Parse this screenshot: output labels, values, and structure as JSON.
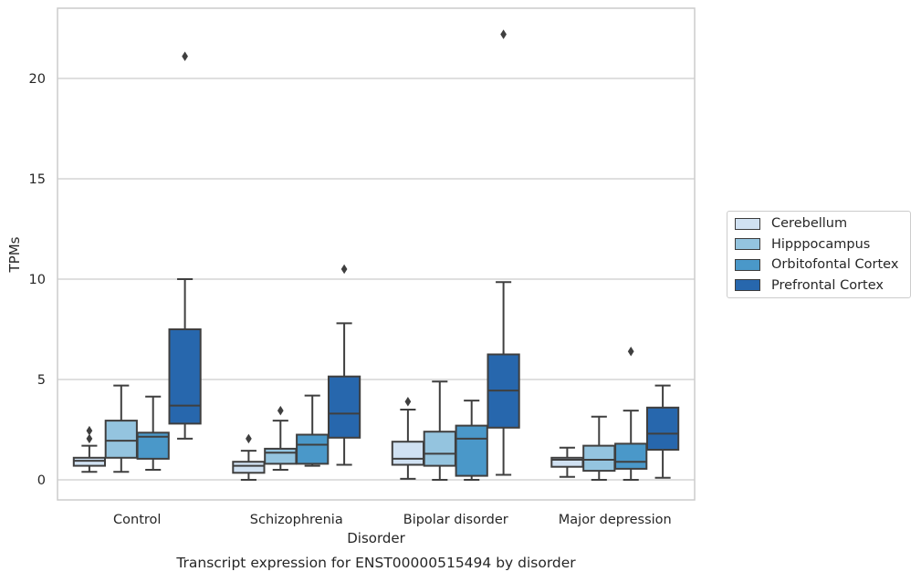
{
  "chart_data": {
    "type": "box",
    "title": "",
    "caption": "Transcript expression for ENST00000515494 by disorder",
    "xlabel": "Disorder",
    "ylabel": "TPMs",
    "ylim": [
      -1,
      23.5
    ],
    "yticks": [
      0,
      5,
      10,
      15,
      20
    ],
    "grid": "horizontal",
    "legend_position": "right",
    "categories": [
      "Control",
      "Schizophrenia",
      "Bipolar disorder",
      "Major depression"
    ],
    "series": [
      {
        "name": "Cerebellum",
        "color": "#d0e1f2",
        "boxes": [
          {
            "whislo": 0.4,
            "q1": 0.7,
            "med": 0.95,
            "q3": 1.1,
            "whishi": 1.7,
            "fliers": [
              2.05,
              2.45
            ]
          },
          {
            "whislo": 0.0,
            "q1": 0.35,
            "med": 0.7,
            "q3": 0.9,
            "whishi": 1.45,
            "fliers": [
              2.05
            ]
          },
          {
            "whislo": 0.05,
            "q1": 0.75,
            "med": 1.05,
            "q3": 1.9,
            "whishi": 3.5,
            "fliers": [
              3.9
            ]
          },
          {
            "whislo": 0.15,
            "q1": 0.65,
            "med": 1.0,
            "q3": 1.1,
            "whishi": 1.6,
            "fliers": []
          }
        ]
      },
      {
        "name": "Hipppocampus",
        "color": "#94c4df",
        "boxes": [
          {
            "whislo": 0.4,
            "q1": 1.1,
            "med": 1.95,
            "q3": 2.95,
            "whishi": 4.7,
            "fliers": []
          },
          {
            "whislo": 0.5,
            "q1": 0.8,
            "med": 1.35,
            "q3": 1.55,
            "whishi": 2.95,
            "fliers": [
              3.45
            ]
          },
          {
            "whislo": 0.0,
            "q1": 0.7,
            "med": 1.3,
            "q3": 2.4,
            "whishi": 4.9,
            "fliers": []
          },
          {
            "whislo": 0.0,
            "q1": 0.45,
            "med": 1.0,
            "q3": 1.7,
            "whishi": 3.15,
            "fliers": []
          }
        ]
      },
      {
        "name": "Orbitofontal Cortex",
        "color": "#4a98c9",
        "boxes": [
          {
            "whislo": 0.5,
            "q1": 1.05,
            "med": 2.15,
            "q3": 2.35,
            "whishi": 4.15,
            "fliers": []
          },
          {
            "whislo": 0.7,
            "q1": 0.8,
            "med": 1.75,
            "q3": 2.25,
            "whishi": 4.2,
            "fliers": []
          },
          {
            "whislo": 0.0,
            "q1": 0.2,
            "med": 2.05,
            "q3": 2.7,
            "whishi": 3.95,
            "fliers": []
          },
          {
            "whislo": 0.0,
            "q1": 0.55,
            "med": 0.9,
            "q3": 1.8,
            "whishi": 3.45,
            "fliers": [
              6.4
            ]
          }
        ]
      },
      {
        "name": "Prefrontal Cortex",
        "color": "#2767ad",
        "boxes": [
          {
            "whislo": 2.05,
            "q1": 2.8,
            "med": 3.7,
            "q3": 7.5,
            "whishi": 10.0,
            "fliers": [
              21.1
            ]
          },
          {
            "whislo": 0.75,
            "q1": 2.1,
            "med": 3.3,
            "q3": 5.15,
            "whishi": 7.8,
            "fliers": [
              10.5
            ]
          },
          {
            "whislo": 0.25,
            "q1": 2.6,
            "med": 4.45,
            "q3": 6.25,
            "whishi": 9.85,
            "fliers": [
              22.2
            ]
          },
          {
            "whislo": 0.1,
            "q1": 1.5,
            "med": 2.3,
            "q3": 3.6,
            "whishi": 4.7,
            "fliers": []
          }
        ]
      }
    ]
  }
}
